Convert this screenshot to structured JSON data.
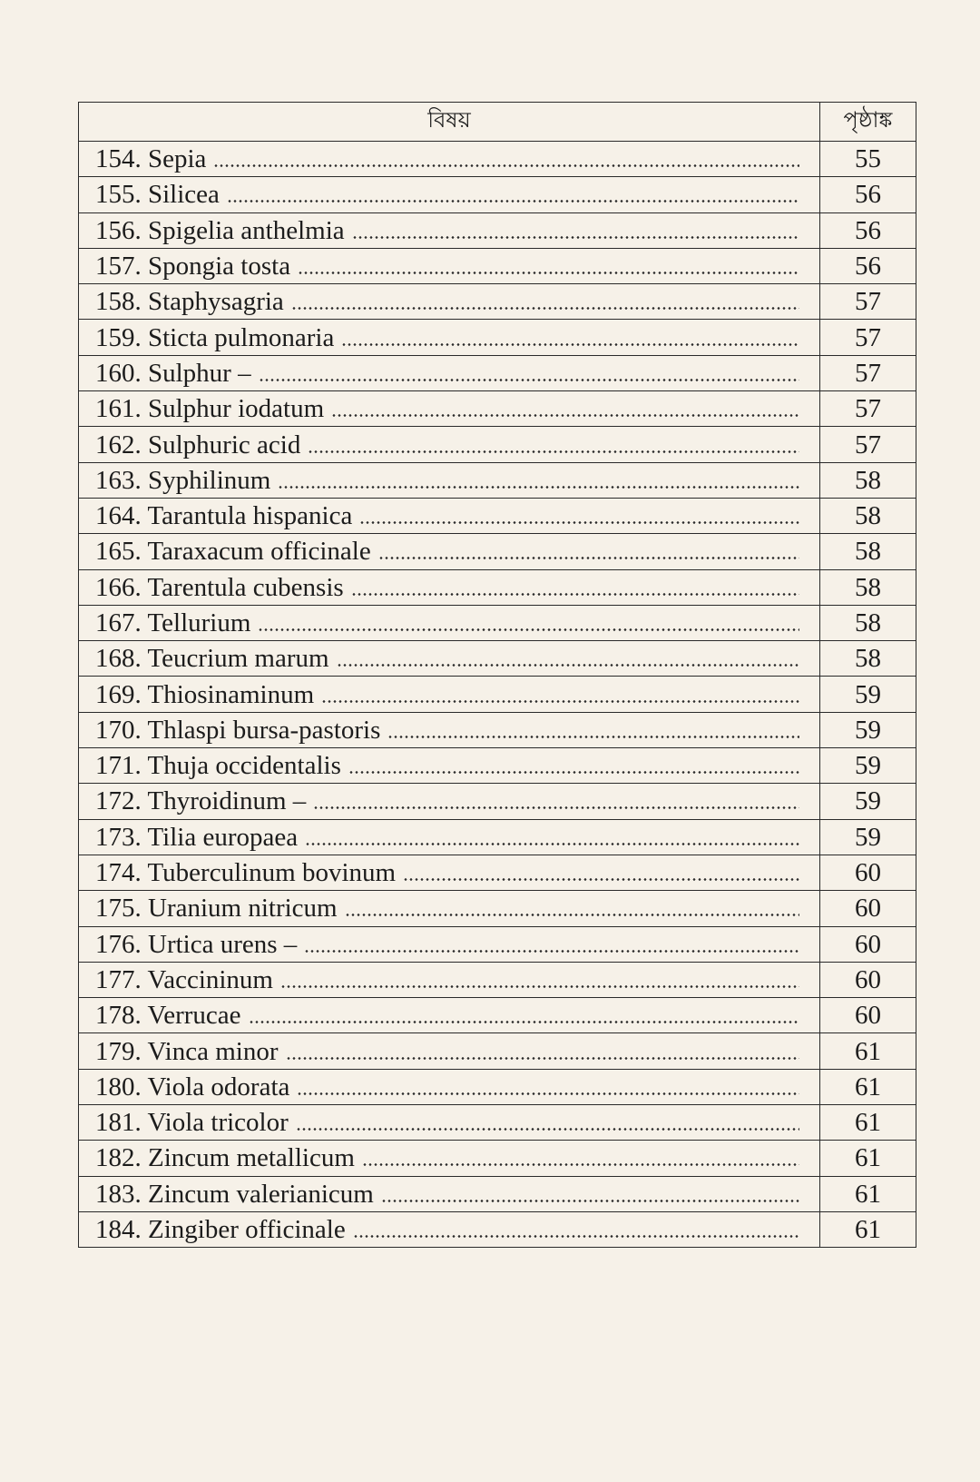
{
  "table": {
    "headers": {
      "subject": "বিষয়",
      "page": "পৃষ্ঠাঙ্ক"
    },
    "rows": [
      {
        "entry": "154. Sepia",
        "page": "55"
      },
      {
        "entry": "155. Silicea",
        "page": "56"
      },
      {
        "entry": "156. Spigelia anthelmia",
        "page": "56"
      },
      {
        "entry": "157. Spongia tosta",
        "page": "56"
      },
      {
        "entry": "158. Staphysagria",
        "page": "57"
      },
      {
        "entry": "159. Sticta pulmonaria",
        "page": "57"
      },
      {
        "entry": "160. Sulphur –",
        "page": "57"
      },
      {
        "entry": "161. Sulphur iodatum",
        "page": "57"
      },
      {
        "entry": "162. Sulphuric acid",
        "page": "57"
      },
      {
        "entry": "163. Syphilinum",
        "page": "58"
      },
      {
        "entry": "164. Tarantula hispanica",
        "page": "58"
      },
      {
        "entry": "165. Taraxacum officinale",
        "page": "58"
      },
      {
        "entry": "166. Tarentula cubensis",
        "page": "58"
      },
      {
        "entry": "167. Tellurium",
        "page": "58"
      },
      {
        "entry": "168. Teucrium marum",
        "page": "58"
      },
      {
        "entry": "169. Thiosinaminum",
        "page": "59"
      },
      {
        "entry": "170. Thlaspi bursa-pastoris",
        "page": "59"
      },
      {
        "entry": "171. Thuja occidentalis",
        "page": "59"
      },
      {
        "entry": "172. Thyroidinum –",
        "page": "59"
      },
      {
        "entry": "173. Tilia europaea",
        "page": "59"
      },
      {
        "entry": "174. Tuberculinum bovinum",
        "page": "60"
      },
      {
        "entry": "175. Uranium nitricum",
        "page": "60"
      },
      {
        "entry": "176. Urtica urens –",
        "page": "60"
      },
      {
        "entry": "177. Vaccininum",
        "page": "60"
      },
      {
        "entry": "178. Verrucae",
        "page": "60"
      },
      {
        "entry": "179. Vinca minor",
        "page": "61"
      },
      {
        "entry": "180. Viola odorata",
        "page": "61"
      },
      {
        "entry": "181. Viola tricolor",
        "page": "61"
      },
      {
        "entry": "182. Zincum metallicum",
        "page": "61"
      },
      {
        "entry": "183. Zincum valerianicum",
        "page": "61"
      },
      {
        "entry": "184. Zingiber officinale",
        "page": "61"
      }
    ]
  }
}
